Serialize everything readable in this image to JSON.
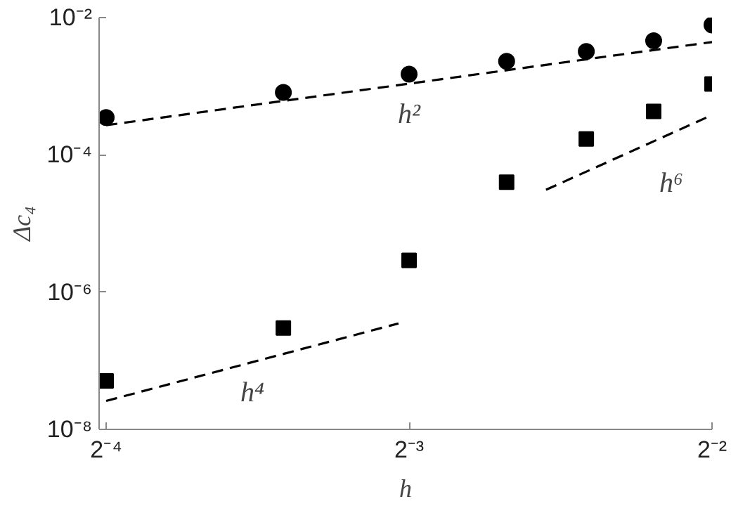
{
  "chart_data": {
    "type": "scatter",
    "xlabel": "h",
    "ylabel": "Δc₄",
    "log": "xy",
    "grid": false,
    "x": [
      0.0625,
      0.09375,
      0.125,
      0.15625,
      0.1875,
      0.21875,
      0.25
    ],
    "series": [
      {
        "marker": "circle",
        "color": "#000000",
        "values": [
          0.00035,
          0.00081,
          0.0015,
          0.0023,
          0.0032,
          0.0046,
          0.0078
        ]
      },
      {
        "marker": "square",
        "color": "#000000",
        "values": [
          5.1e-08,
          3e-07,
          2.9e-06,
          4e-05,
          0.00017,
          0.00043,
          0.00108
        ]
      },
      {
        "type": "line",
        "line_style": "dashed",
        "color": "#000000",
        "x": [
          0.0625,
          0.25
        ],
        "values": [
          0.00027,
          0.0044
        ]
      },
      {
        "type": "line",
        "line_style": "dashed",
        "color": "#000000",
        "x": [
          0.0625,
          0.122
        ],
        "values": [
          2.6e-08,
          3.5e-07
        ]
      },
      {
        "type": "line",
        "line_style": "dashed",
        "color": "#000000",
        "x": [
          0.171,
          0.25
        ],
        "values": [
          3.1e-05,
          0.00038
        ]
      }
    ],
    "annotations": [
      "h²",
      "h⁴",
      "h⁶"
    ],
    "xlim": [
      0.0615,
      0.25
    ],
    "ylim": [
      1e-08,
      0.01
    ],
    "xticks": [
      {
        "value": 0.0625,
        "label": "2⁻⁴"
      },
      {
        "value": 0.125,
        "label": "2⁻³"
      },
      {
        "value": 0.25,
        "label": "2⁻²"
      }
    ],
    "yticks": [
      {
        "value": 1e-08,
        "label": "10⁻⁸"
      },
      {
        "value": 1e-06,
        "label": "10⁻⁶"
      },
      {
        "value": 0.0001,
        "label": "10⁻⁴"
      },
      {
        "value": 0.01,
        "label": "10⁻²"
      }
    ]
  }
}
